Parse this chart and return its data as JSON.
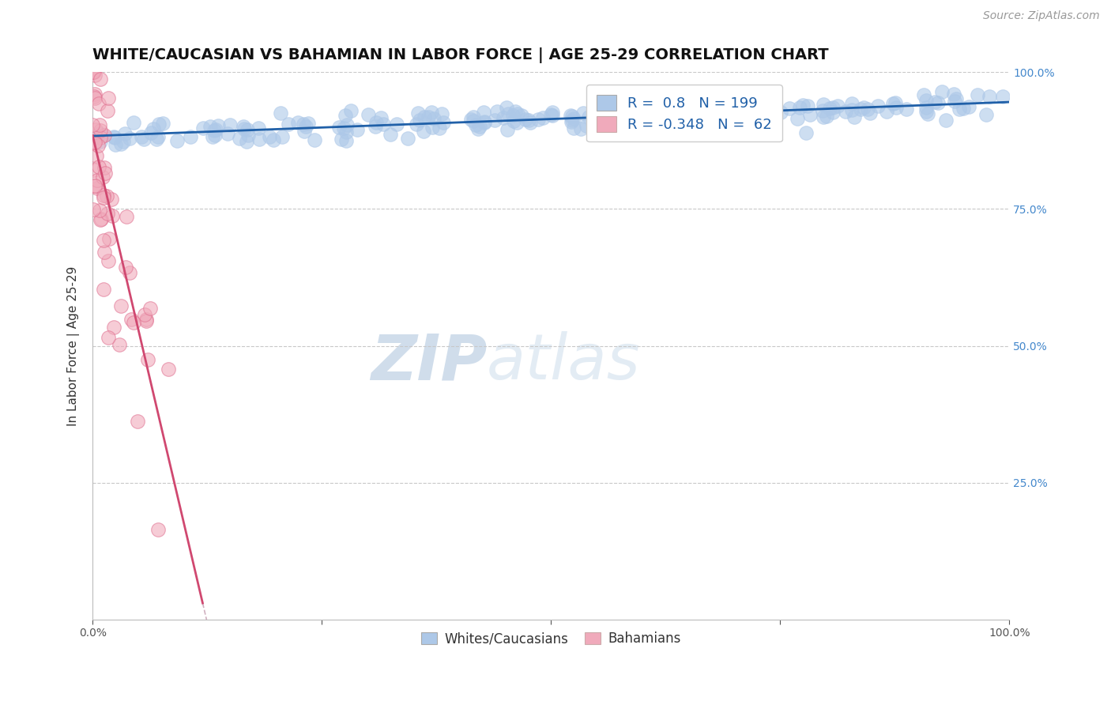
{
  "title": "WHITE/CAUCASIAN VS BAHAMIAN IN LABOR FORCE | AGE 25-29 CORRELATION CHART",
  "source": "Source: ZipAtlas.com",
  "ylabel": "In Labor Force | Age 25-29",
  "xlim": [
    0.0,
    1.0
  ],
  "ylim": [
    0.0,
    1.0
  ],
  "blue_R": 0.8,
  "blue_N": 199,
  "pink_R": -0.348,
  "pink_N": 62,
  "blue_color": "#adc8e8",
  "blue_edge_color": "#adc8e8",
  "blue_line_color": "#2060a8",
  "pink_color": "#f0aabb",
  "pink_edge_color": "#e07090",
  "pink_line_color": "#d04870",
  "pink_dash_color": "#d0b0c0",
  "legend_label_blue": "Whites/Caucasians",
  "legend_label_pink": "Bahamians",
  "background_color": "#ffffff",
  "grid_color": "#c8c8c8",
  "watermark_zip": "ZIP",
  "watermark_atlas": "atlas",
  "title_fontsize": 14,
  "axis_label_fontsize": 11,
  "tick_fontsize": 10,
  "legend_fontsize": 13,
  "source_fontsize": 10,
  "right_tick_color": "#4488cc"
}
